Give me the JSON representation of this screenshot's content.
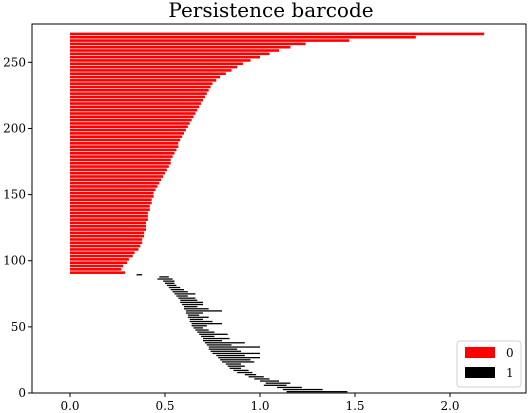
{
  "chart_data": {
    "type": "barcode",
    "title": "Persistence barcode",
    "xlabel": "",
    "ylabel": "",
    "xlim": [
      -0.2,
      2.4
    ],
    "ylim": [
      0,
      279
    ],
    "x_ticks": [
      0.0,
      0.5,
      1.0,
      1.5,
      2.0
    ],
    "x_tick_labels": [
      "0.0",
      "0.5",
      "1.0",
      "1.5",
      "2.0"
    ],
    "y_ticks": [
      0,
      50,
      100,
      150,
      200,
      250
    ],
    "y_tick_labels": [
      "0",
      "50",
      "100",
      "150",
      "200",
      "250"
    ],
    "grid": false,
    "legend_position": "bottom-right",
    "series": [
      {
        "name": "0",
        "color": "#ff0000",
        "bars_birth_death": [
          [
            0.0,
            0.29
          ],
          [
            0.0,
            0.27
          ],
          [
            0.0,
            0.28
          ],
          [
            0.0,
            0.3
          ],
          [
            0.0,
            0.31
          ],
          [
            0.0,
            0.33
          ],
          [
            0.0,
            0.34
          ],
          [
            0.0,
            0.36
          ],
          [
            0.0,
            0.37
          ],
          [
            0.0,
            0.38
          ],
          [
            0.0,
            0.38
          ],
          [
            0.0,
            0.39
          ],
          [
            0.0,
            0.39
          ],
          [
            0.0,
            0.4
          ],
          [
            0.0,
            0.4
          ],
          [
            0.0,
            0.4
          ],
          [
            0.0,
            0.41
          ],
          [
            0.0,
            0.41
          ],
          [
            0.0,
            0.41
          ],
          [
            0.0,
            0.42
          ],
          [
            0.0,
            0.42
          ],
          [
            0.0,
            0.43
          ],
          [
            0.0,
            0.43
          ],
          [
            0.0,
            0.44
          ],
          [
            0.0,
            0.44
          ],
          [
            0.0,
            0.45
          ],
          [
            0.0,
            0.46
          ],
          [
            0.0,
            0.47
          ],
          [
            0.0,
            0.48
          ],
          [
            0.0,
            0.49
          ],
          [
            0.0,
            0.5
          ],
          [
            0.0,
            0.51
          ],
          [
            0.0,
            0.52
          ],
          [
            0.0,
            0.53
          ],
          [
            0.0,
            0.53
          ],
          [
            0.0,
            0.54
          ],
          [
            0.0,
            0.55
          ],
          [
            0.0,
            0.56
          ],
          [
            0.0,
            0.57
          ],
          [
            0.0,
            0.57
          ],
          [
            0.0,
            0.58
          ],
          [
            0.0,
            0.59
          ],
          [
            0.0,
            0.6
          ],
          [
            0.0,
            0.61
          ],
          [
            0.0,
            0.62
          ],
          [
            0.0,
            0.63
          ],
          [
            0.0,
            0.64
          ],
          [
            0.0,
            0.65
          ],
          [
            0.0,
            0.66
          ],
          [
            0.0,
            0.67
          ],
          [
            0.0,
            0.68
          ],
          [
            0.0,
            0.69
          ],
          [
            0.0,
            0.7
          ],
          [
            0.0,
            0.71
          ],
          [
            0.0,
            0.72
          ],
          [
            0.0,
            0.73
          ],
          [
            0.0,
            0.74
          ],
          [
            0.0,
            0.75
          ],
          [
            0.0,
            0.77
          ],
          [
            0.0,
            0.79
          ],
          [
            0.0,
            0.82
          ],
          [
            0.0,
            0.85
          ],
          [
            0.0,
            0.88
          ],
          [
            0.0,
            0.91
          ],
          [
            0.0,
            0.95
          ],
          [
            0.0,
            1.0
          ],
          [
            0.0,
            1.05
          ],
          [
            0.0,
            1.1
          ],
          [
            0.0,
            1.16
          ],
          [
            0.0,
            1.24
          ],
          [
            0.0,
            1.47
          ],
          [
            0.0,
            1.82
          ],
          [
            0.0,
            2.18
          ]
        ]
      },
      {
        "name": "1",
        "color": "#000000",
        "bars_birth_death": [
          [
            1.14,
            1.46
          ],
          [
            1.12,
            1.33
          ],
          [
            1.09,
            1.22
          ],
          [
            1.02,
            1.14
          ],
          [
            1.03,
            1.16
          ],
          [
            1.0,
            1.1
          ],
          [
            0.97,
            1.05
          ],
          [
            0.94,
            1.02
          ],
          [
            0.92,
            0.98
          ],
          [
            0.88,
            0.96
          ],
          [
            0.86,
            0.94
          ],
          [
            0.84,
            0.9
          ],
          [
            0.83,
            0.92
          ],
          [
            0.82,
            0.9
          ],
          [
            0.8,
            0.97
          ],
          [
            0.79,
            0.95
          ],
          [
            0.78,
            1.0
          ],
          [
            0.77,
            0.92
          ],
          [
            0.75,
            1.0
          ],
          [
            0.74,
            0.9
          ],
          [
            0.73,
            0.88
          ],
          [
            0.73,
            1.0
          ],
          [
            0.72,
            0.85
          ],
          [
            0.71,
            0.92
          ],
          [
            0.7,
            0.8
          ],
          [
            0.7,
            0.84
          ],
          [
            0.69,
            0.76
          ],
          [
            0.68,
            0.83
          ],
          [
            0.67,
            0.76
          ],
          [
            0.66,
            0.73
          ],
          [
            0.65,
            0.7
          ],
          [
            0.64,
            0.72
          ],
          [
            0.64,
            0.8
          ],
          [
            0.63,
            0.75
          ],
          [
            0.63,
            0.7
          ],
          [
            0.62,
            0.73
          ],
          [
            0.62,
            0.68
          ],
          [
            0.61,
            0.7
          ],
          [
            0.61,
            0.8
          ],
          [
            0.6,
            0.73
          ],
          [
            0.6,
            0.67
          ],
          [
            0.59,
            0.7
          ],
          [
            0.58,
            0.7
          ],
          [
            0.58,
            0.67
          ],
          [
            0.57,
            0.66
          ],
          [
            0.56,
            0.62
          ],
          [
            0.55,
            0.66
          ],
          [
            0.54,
            0.62
          ],
          [
            0.53,
            0.6
          ],
          [
            0.52,
            0.58
          ],
          [
            0.51,
            0.56
          ],
          [
            0.5,
            0.55
          ],
          [
            0.49,
            0.55
          ],
          [
            0.46,
            0.54
          ],
          [
            0.47,
            0.52
          ],
          [
            0.35,
            0.38
          ]
        ]
      }
    ]
  }
}
